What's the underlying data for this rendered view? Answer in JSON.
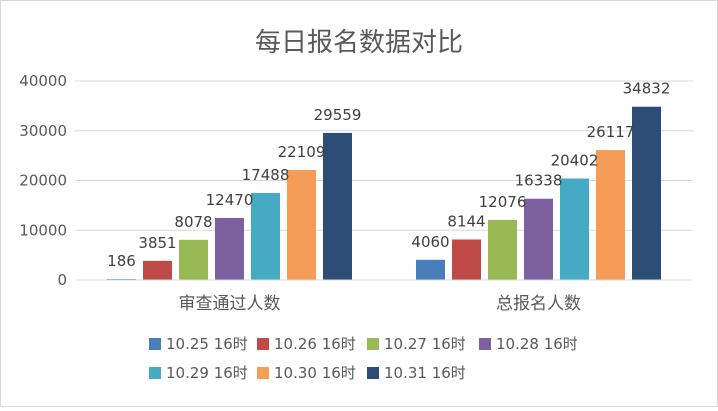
{
  "chart_data": {
    "type": "bar",
    "title": "每日报名数据对比",
    "categories": [
      "审查通过人数",
      "总报名人数"
    ],
    "ylim": [
      0,
      40000
    ],
    "yticks": [
      0,
      10000,
      20000,
      30000,
      40000
    ],
    "grid": true,
    "legend_position": "bottom",
    "series": [
      {
        "name": "10.25 16时",
        "color": "#4a7ebb",
        "values": [
          186,
          4060
        ]
      },
      {
        "name": "10.26 16时",
        "color": "#be4b48",
        "values": [
          3851,
          8144
        ]
      },
      {
        "name": "10.27 16时",
        "color": "#98b954",
        "values": [
          8078,
          12076
        ]
      },
      {
        "name": "10.28 16时",
        "color": "#7d60a0",
        "values": [
          12470,
          16338
        ]
      },
      {
        "name": "10.29 16时",
        "color": "#46aac5",
        "values": [
          17488,
          20402
        ]
      },
      {
        "name": "10.30 16时",
        "color": "#f59d56",
        "values": [
          22109,
          26117
        ]
      },
      {
        "name": "10.31 16时",
        "color": "#2c4d75",
        "values": [
          29559,
          34832
        ]
      }
    ]
  }
}
